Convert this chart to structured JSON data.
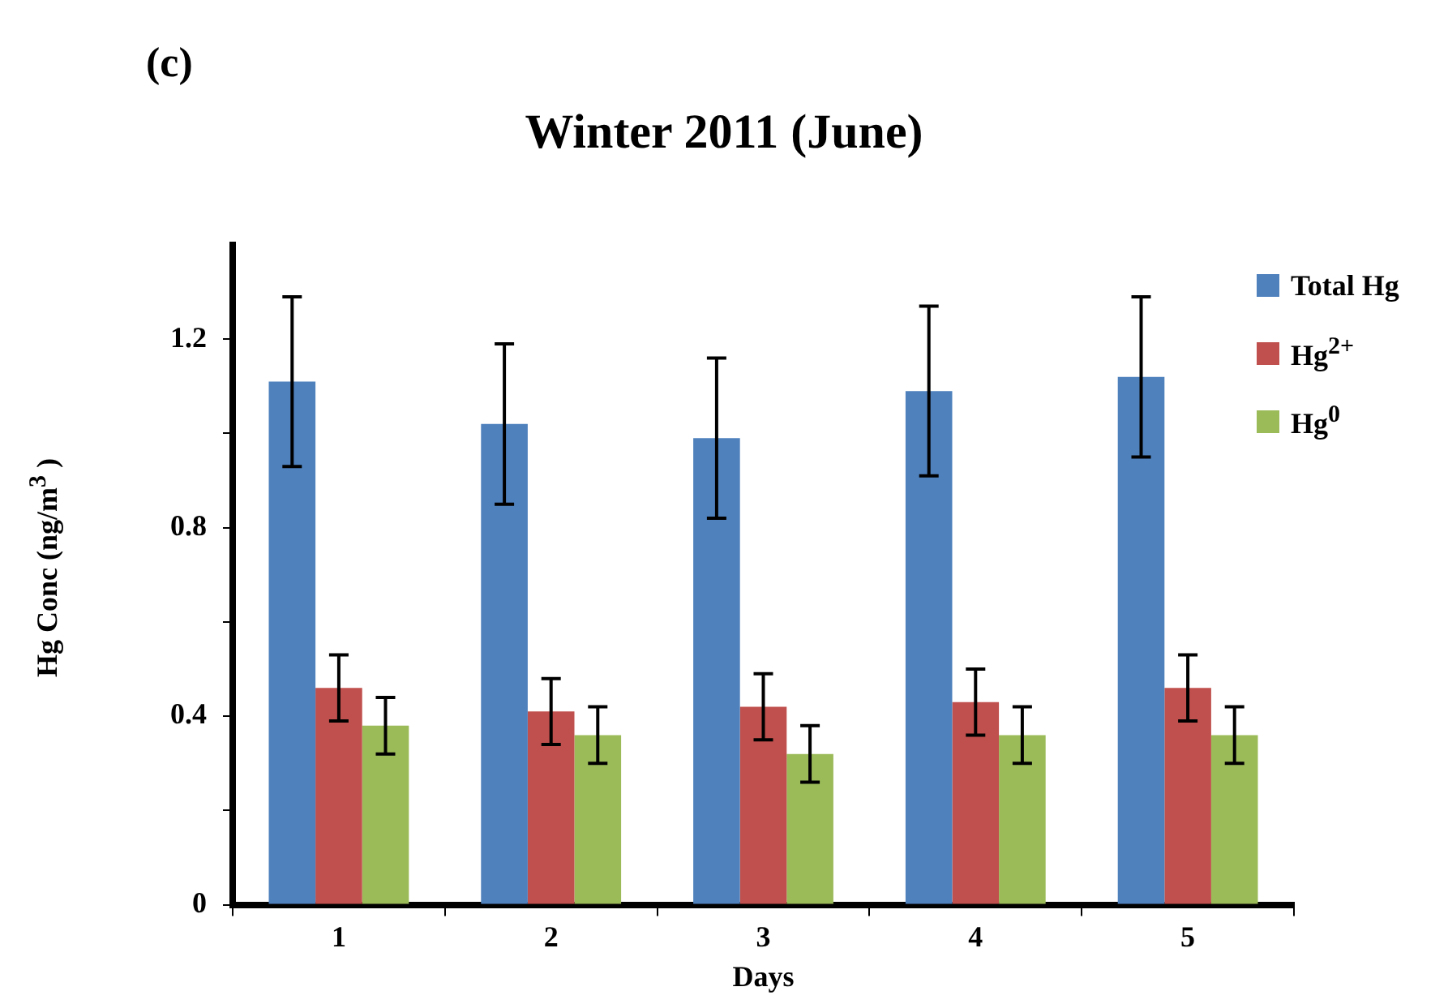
{
  "chart_data": {
    "type": "bar",
    "title": "Winter 2011 (June)",
    "xlabel": "Days",
    "ylabel": "Hg Conc (ng/m$^{3}$ )",
    "annotations": [
      "(c)"
    ],
    "categories": [
      "1",
      "2",
      "3",
      "4",
      "5"
    ],
    "series": [
      {
        "name": "Total Hg",
        "color": "#4f81bd",
        "values": [
          1.11,
          1.02,
          0.99,
          1.09,
          1.12
        ],
        "errors": [
          0.18,
          0.17,
          0.17,
          0.18,
          0.17
        ]
      },
      {
        "name": "Hg$^{2+}$",
        "color": "#c0504d",
        "values": [
          0.46,
          0.41,
          0.42,
          0.43,
          0.46
        ],
        "errors": [
          0.07,
          0.07,
          0.07,
          0.07,
          0.07
        ]
      },
      {
        "name": "Hg$^{0}$",
        "color": "#9bbb59",
        "values": [
          0.38,
          0.36,
          0.32,
          0.36,
          0.36
        ],
        "errors": [
          0.06,
          0.06,
          0.06,
          0.06,
          0.06
        ]
      }
    ],
    "ylim": [
      0,
      1.4
    ],
    "yticks": [
      0,
      {
        "value": 0.2,
        "label": null
      },
      0.4,
      {
        "value": 0.6,
        "label": null
      },
      0.8,
      {
        "value": 1,
        "label": null
      },
      1.2
    ],
    "grid": false,
    "legend": "top right"
  }
}
